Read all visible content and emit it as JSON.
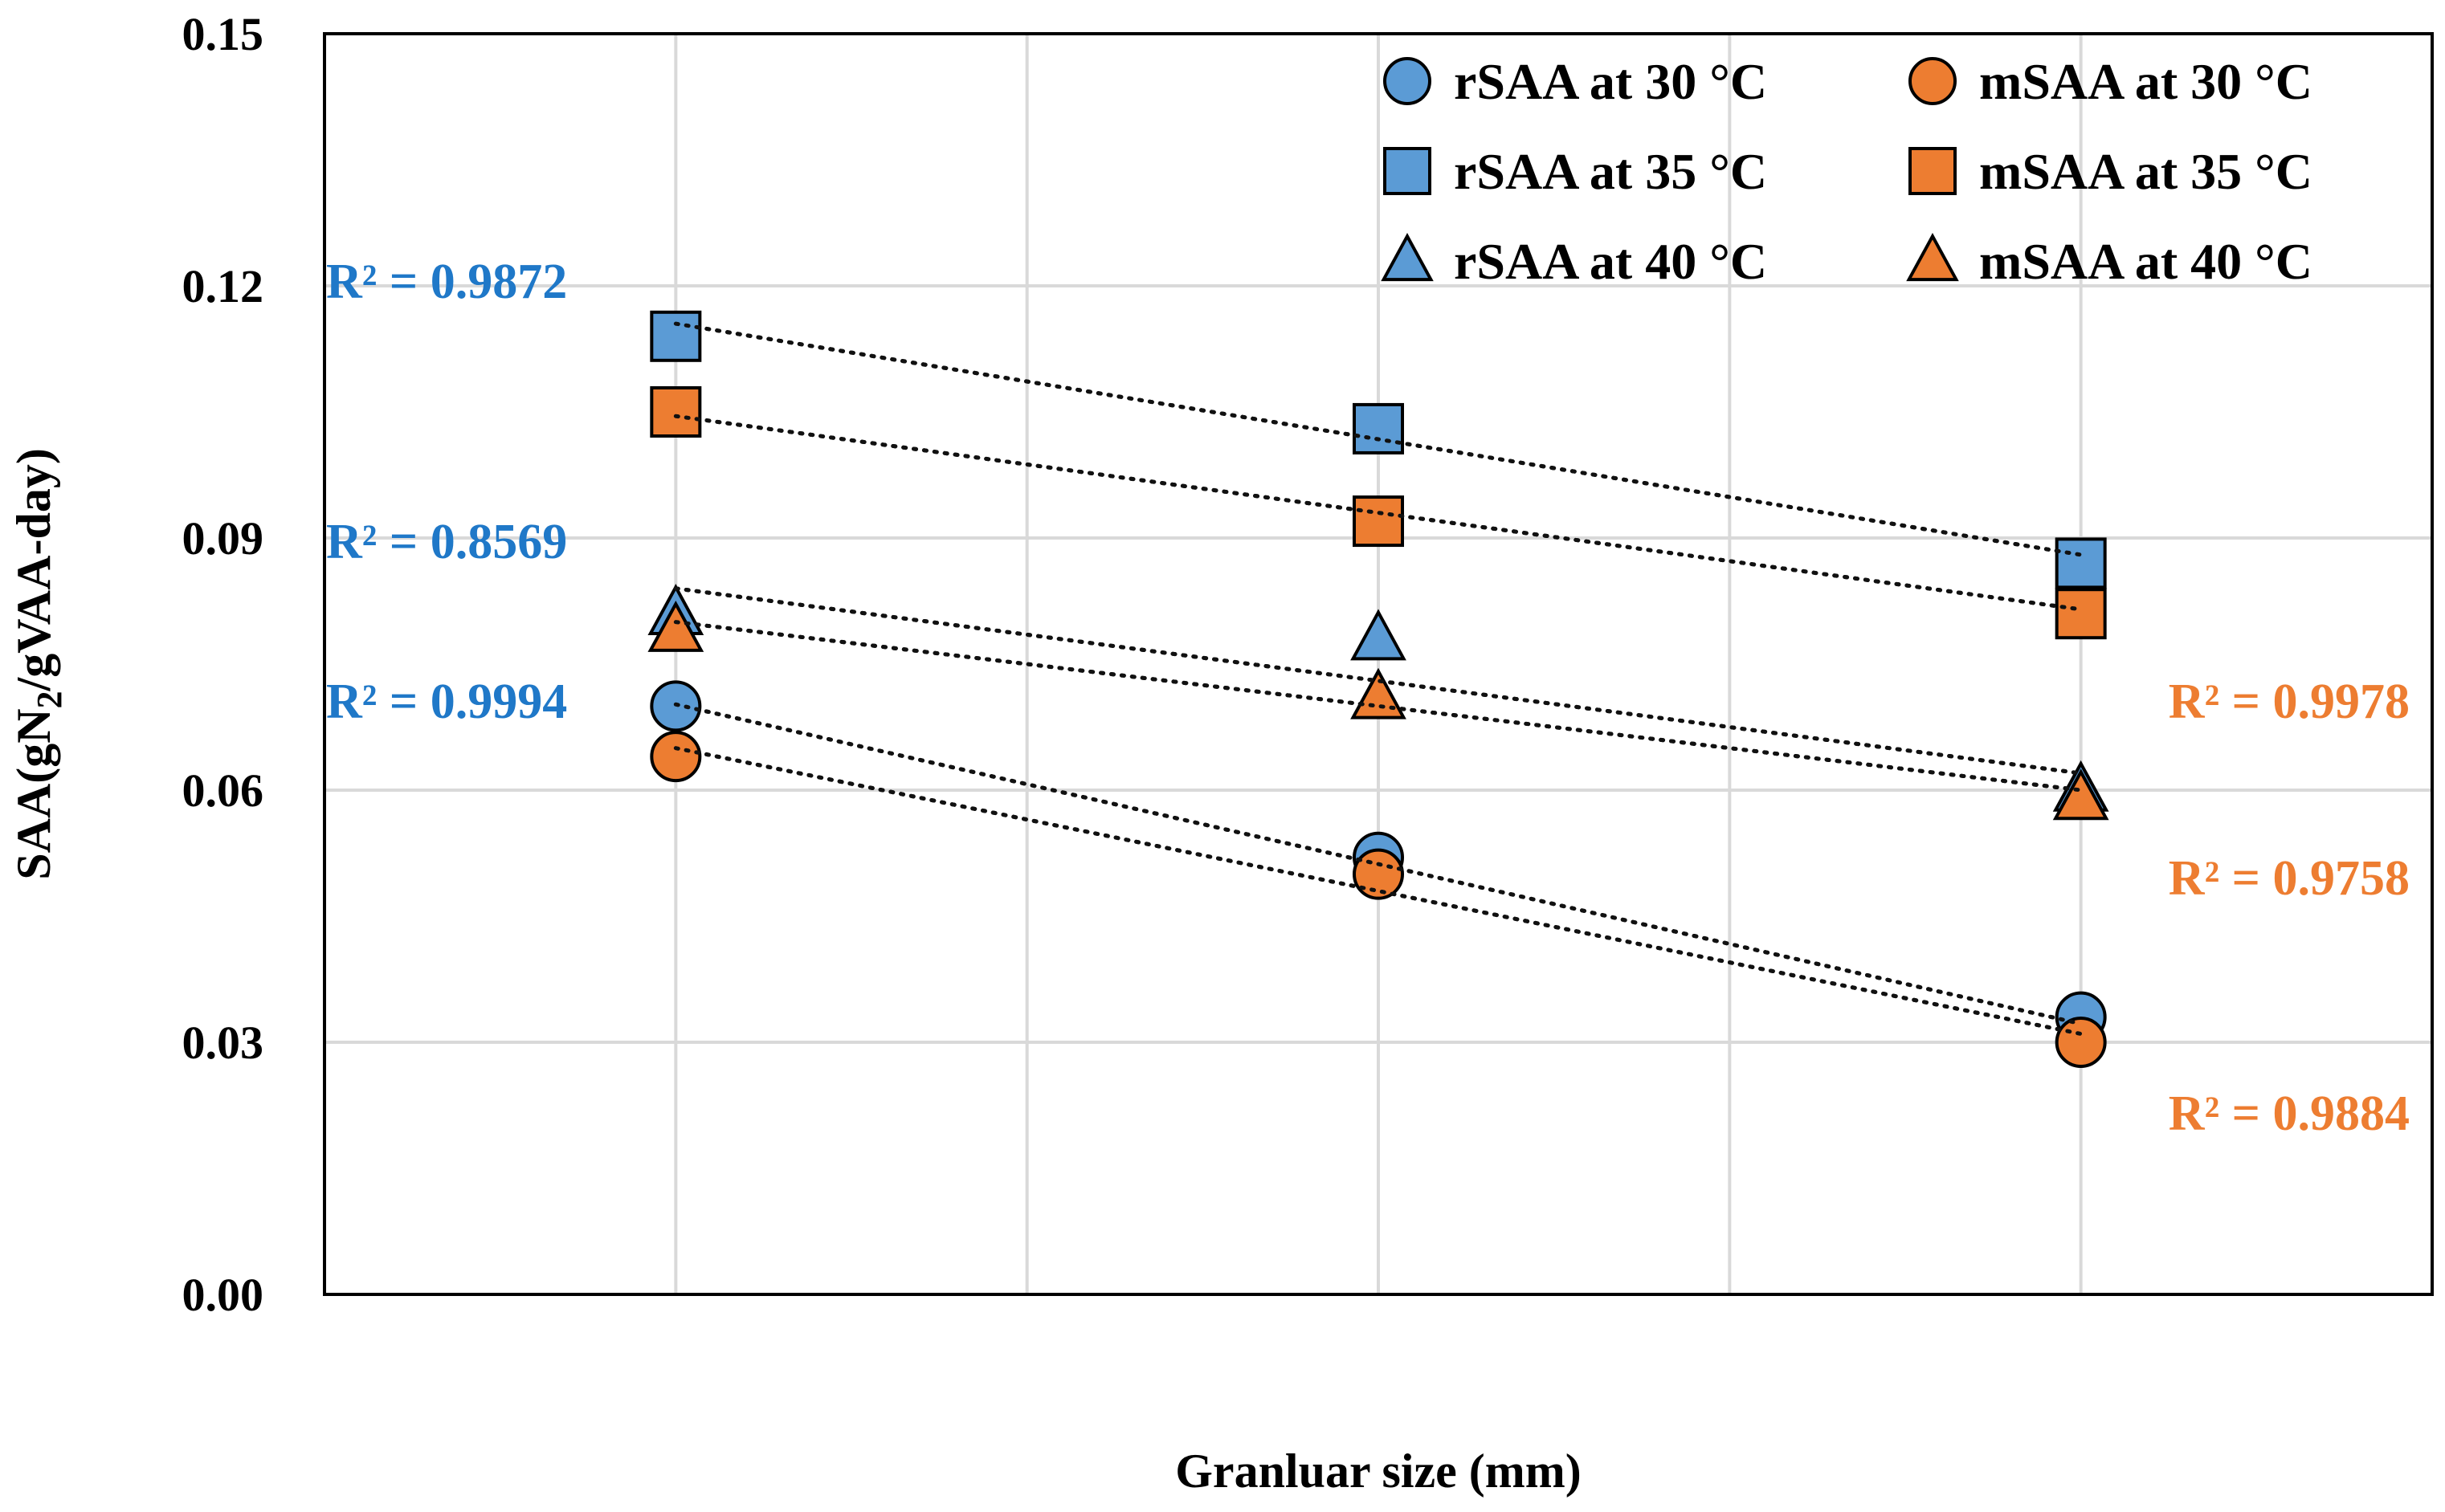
{
  "chart_data": {
    "type": "scatter",
    "title": "",
    "xlabel": "Granluar size (mm)",
    "ylabel": {
      "prefix": "SAA(gN",
      "sub": "2",
      "suffix": "/gVAA-day)"
    },
    "x_positions": [
      1,
      2,
      3
    ],
    "xlim": [
      0.5,
      3.5
    ],
    "ylim": [
      0,
      0.15
    ],
    "yticks": [
      {
        "value": 0,
        "label": "0.00"
      },
      {
        "value": 0.03,
        "label": "0.03"
      },
      {
        "value": 0.06,
        "label": "0.06"
      },
      {
        "value": 0.09,
        "label": "0.09"
      },
      {
        "value": 0.12,
        "label": "0.12"
      },
      {
        "value": 0.15,
        "label": "0.15"
      }
    ],
    "xgrid": [
      1,
      1.5,
      2,
      2.5,
      3
    ],
    "colors": {
      "rSAA": "#5b9bd5",
      "mSAA": "#ed7d31",
      "r2_blue": "#1f78c8",
      "r2_orange": "#ed7d31"
    },
    "series": [
      {
        "name": "rSAA at 30 °C",
        "marker": "circle",
        "group": "rSAA",
        "values": [
          0.07,
          0.052,
          0.033
        ],
        "trend": [
          0.0702,
          0.0502,
          0.0322
        ]
      },
      {
        "name": "mSAA at 30 °C",
        "marker": "circle",
        "group": "mSAA",
        "values": [
          0.064,
          0.05,
          0.03
        ],
        "trend": [
          0.065,
          0.048,
          0.031
        ]
      },
      {
        "name": "rSAA at 35 °C",
        "marker": "square",
        "group": "rSAA",
        "values": [
          0.114,
          0.103,
          0.087
        ],
        "trend": [
          0.1155,
          0.102,
          0.088
        ]
      },
      {
        "name": "mSAA at 35 °C",
        "marker": "square",
        "group": "mSAA",
        "values": [
          0.105,
          0.092,
          0.081
        ],
        "trend": [
          0.1045,
          0.093,
          0.0815
        ]
      },
      {
        "name": "rSAA at 40 °C",
        "marker": "triangle",
        "group": "rSAA",
        "values": [
          0.081,
          0.078,
          0.06
        ],
        "trend": [
          0.084,
          0.073,
          0.062
        ]
      },
      {
        "name": "mSAA at 40 °C",
        "marker": "triangle",
        "group": "mSAA",
        "values": [
          0.079,
          0.071,
          0.059
        ],
        "trend": [
          0.08,
          0.07,
          0.06
        ]
      }
    ],
    "legend": {
      "position": "top-right",
      "items": [
        {
          "label": "rSAA at 30 °C",
          "marker": "circle",
          "group": "rSAA"
        },
        {
          "label": "mSAA at 30 °C",
          "marker": "circle",
          "group": "mSAA"
        },
        {
          "label": "rSAA at 35 °C",
          "marker": "square",
          "group": "rSAA"
        },
        {
          "label": "mSAA at 35 °C",
          "marker": "square",
          "group": "mSAA"
        },
        {
          "label": "rSAA at 40 °C",
          "marker": "triangle",
          "group": "rSAA"
        },
        {
          "label": "mSAA at 40 °C",
          "marker": "triangle",
          "group": "mSAA"
        }
      ]
    },
    "annotations": [
      {
        "text": "R² = 0.9872",
        "color": "r2_blue",
        "side": "left",
        "value": 0.1205
      },
      {
        "text": "R² = 0.8569",
        "color": "r2_blue",
        "side": "left",
        "value": 0.0895
      },
      {
        "text": "R² = 0.9994",
        "color": "r2_blue",
        "side": "left",
        "value": 0.0705
      },
      {
        "text": "R² = 0.9978",
        "color": "r2_orange",
        "side": "right",
        "value": 0.0705
      },
      {
        "text": "R² = 0.9758",
        "color": "r2_orange",
        "side": "right",
        "value": 0.0495
      },
      {
        "text": "R² = 0.9884",
        "color": "r2_orange",
        "side": "right",
        "value": 0.0215
      }
    ]
  }
}
